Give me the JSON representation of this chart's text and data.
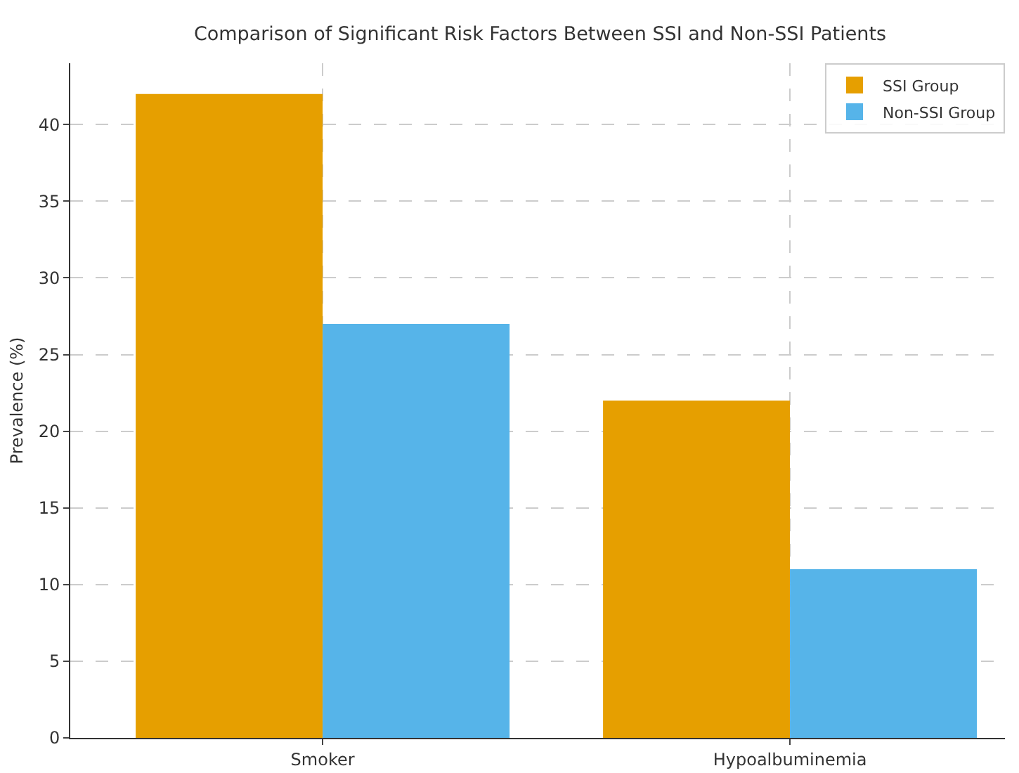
{
  "chart_data": {
    "type": "bar",
    "title": "Comparison of Significant Risk Factors Between SSI and Non-SSI Patients",
    "ylabel": "Prevalence (%)",
    "categories": [
      "Smoker",
      "Hypoalbuminemia"
    ],
    "series": [
      {
        "name": "SSI Group",
        "color": "#e69f00",
        "values": [
          42,
          22
        ]
      },
      {
        "name": "Non-SSI Group",
        "color": "#56b4e9",
        "values": [
          27,
          11
        ]
      }
    ],
    "ylim": [
      0,
      44
    ],
    "yticks": [
      0,
      5,
      10,
      15,
      20,
      25,
      30,
      35,
      40
    ],
    "grid": true,
    "legend": "top right"
  }
}
